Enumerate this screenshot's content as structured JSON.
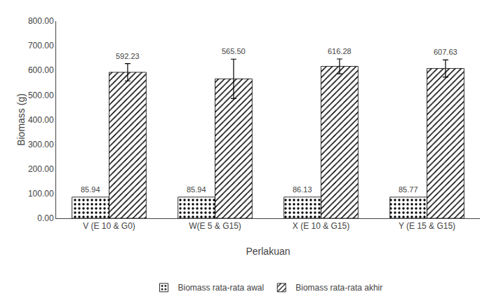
{
  "chart_data": {
    "type": "bar",
    "xlabel": "Perlakuan",
    "ylabel": "Biomass (g)",
    "categories": [
      "V (E 10 & G0)",
      "W(E 5 & G15)",
      "X (E 10 & G15)",
      "Y (E 15 & G15)"
    ],
    "series": [
      {
        "name": "Biomass rata-rata awal",
        "color": "white",
        "values": [
          85.94,
          85.94,
          86.13,
          85.77
        ],
        "value_labels": [
          "85.94",
          "85.94",
          "86.13",
          "85.77"
        ]
      },
      {
        "name": "Biomass rata-rata akhir",
        "color": "#c8c8c8",
        "values": [
          592.23,
          565.5,
          616.28,
          607.63
        ],
        "value_labels": [
          "592.23",
          "565.50",
          "616.28",
          "607.63"
        ],
        "errors": [
          35,
          80,
          30,
          35
        ]
      }
    ],
    "ylim": [
      0,
      800
    ],
    "yticks": [
      {
        "value": 0,
        "label": "0.00"
      },
      {
        "value": 100,
        "label": "100.00"
      },
      {
        "value": 200,
        "label": "200.00"
      },
      {
        "value": 300,
        "label": "300.00"
      },
      {
        "value": 400,
        "label": "400.00"
      },
      {
        "value": 500,
        "label": "500.00"
      },
      {
        "value": 600,
        "label": "600.00"
      },
      {
        "value": 700,
        "label": "700.00"
      },
      {
        "value": 800,
        "label": "800.00"
      }
    ],
    "grid": false,
    "legend": "bottom",
    "data_labels": true
  }
}
